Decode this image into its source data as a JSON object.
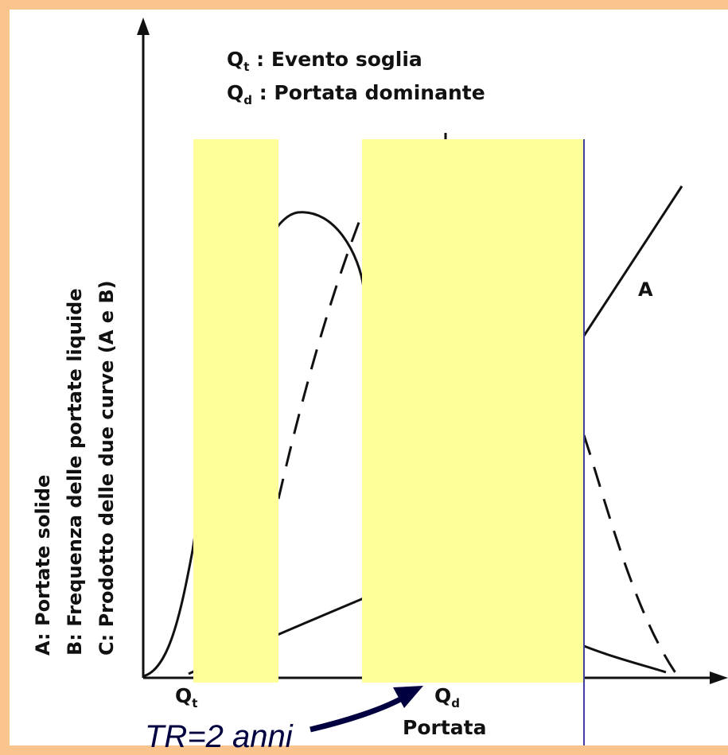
{
  "legend": {
    "qt_symbol": "Q",
    "qt_sub": "t",
    "qt_text": ": Evento soglia",
    "qd_symbol": "Q",
    "qd_sub": "d",
    "qd_text": ": Portata dominante"
  },
  "y_labels": {
    "a_key": "A",
    "a_text": ": Portate solide",
    "b_key": "B",
    "b_text": ": Frequenza delle portate liquide",
    "c_key": "C",
    "c_text": ": Prodotto delle due curve (A e B)"
  },
  "x_axis": {
    "tick_qt_symbol": "Q",
    "tick_qt_sub": "t",
    "tick_qd_symbol": "Q",
    "tick_qd_sub": "d",
    "label": "Portata"
  },
  "curve_labels": {
    "a": "A"
  },
  "annotation": {
    "text": "TR=2 anni"
  },
  "colors": {
    "frame": "#f9c48e",
    "highlight": "#ffff99",
    "arrow": "#000040",
    "marker_line": "#4040a0"
  }
}
